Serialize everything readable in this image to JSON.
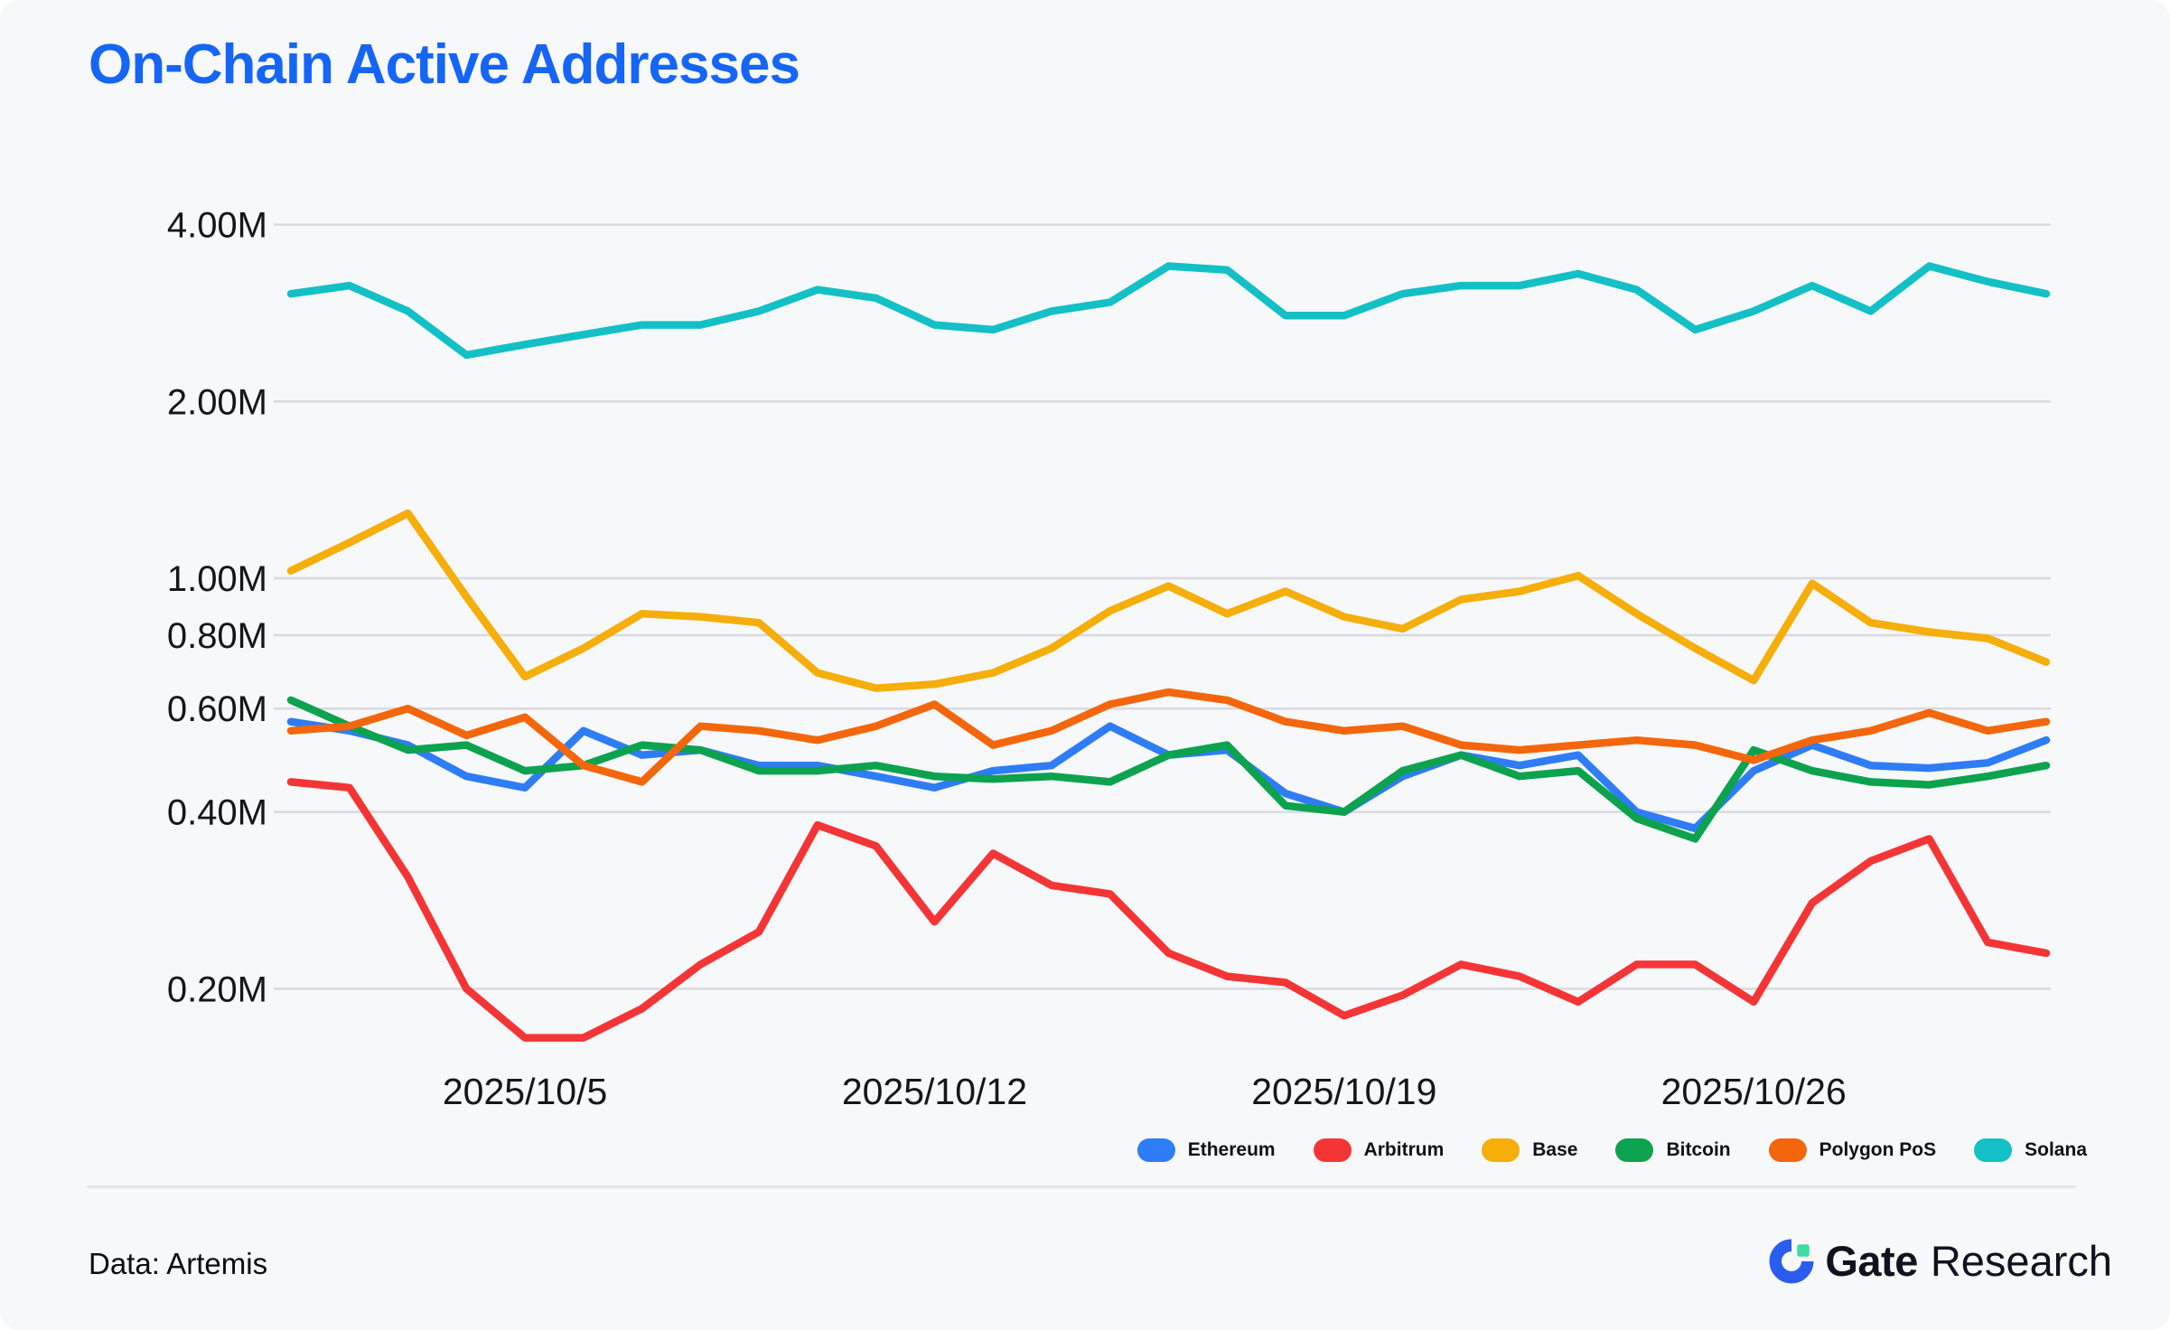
{
  "page": {
    "title": "On-Chain Active Addresses",
    "footer": {
      "source_label": "Data: Artemis",
      "brand_bold": "Gate",
      "brand_regular": "Research"
    }
  },
  "chart_data": {
    "type": "line",
    "title": "On-Chain Active Addresses",
    "unit": "millions of active addresses",
    "y_scale": "log",
    "grid": true,
    "legend_position": "bottom-right",
    "ylim": [
      0.15,
      4.6
    ],
    "y_ticks": [
      "4.00M",
      "2.00M",
      "1.00M",
      "0.80M",
      "0.60M",
      "0.40M",
      "0.20M"
    ],
    "y_tick_values": [
      4,
      2,
      1,
      0.8,
      0.6,
      0.4,
      0.2
    ],
    "x": [
      "2025/10/1",
      "2025/10/2",
      "2025/10/3",
      "2025/10/4",
      "2025/10/5",
      "2025/10/6",
      "2025/10/7",
      "2025/10/8",
      "2025/10/9",
      "2025/10/10",
      "2025/10/11",
      "2025/10/12",
      "2025/10/13",
      "2025/10/14",
      "2025/10/15",
      "2025/10/16",
      "2025/10/17",
      "2025/10/18",
      "2025/10/19",
      "2025/10/20",
      "2025/10/21",
      "2025/10/22",
      "2025/10/23",
      "2025/10/24",
      "2025/10/25",
      "2025/10/26",
      "2025/10/27",
      "2025/10/28",
      "2025/10/29",
      "2025/10/30",
      "2025/10/31"
    ],
    "x_tick_labels": [
      "2025/10/5",
      "2025/10/12",
      "2025/10/19",
      "2025/10/26"
    ],
    "x_tick_days": [
      4,
      11,
      18,
      25
    ],
    "series": [
      {
        "name": "Ethereum",
        "color": "#2e7cf6",
        "values": [
          0.57,
          0.55,
          0.52,
          0.46,
          0.44,
          0.55,
          0.5,
          0.51,
          0.48,
          0.48,
          0.46,
          0.44,
          0.47,
          0.48,
          0.56,
          0.5,
          0.51,
          0.43,
          0.4,
          0.46,
          0.5,
          0.48,
          0.5,
          0.4,
          0.375,
          0.47,
          0.52,
          0.48,
          0.475,
          0.485,
          0.53
        ]
      },
      {
        "name": "Arbitrum",
        "color": "#f43536",
        "values": [
          0.45,
          0.44,
          0.31,
          0.2,
          0.165,
          0.165,
          0.185,
          0.22,
          0.25,
          0.38,
          0.35,
          0.26,
          0.34,
          0.3,
          0.29,
          0.23,
          0.21,
          0.205,
          0.18,
          0.195,
          0.22,
          0.21,
          0.19,
          0.22,
          0.22,
          0.19,
          0.28,
          0.33,
          0.36,
          0.24,
          0.23
        ]
      },
      {
        "name": "Base",
        "color": "#f5ae0a",
        "values": [
          1.03,
          1.15,
          1.29,
          0.93,
          0.68,
          0.76,
          0.87,
          0.86,
          0.84,
          0.69,
          0.65,
          0.66,
          0.69,
          0.76,
          0.88,
          0.97,
          0.87,
          0.95,
          0.86,
          0.82,
          0.92,
          0.95,
          1.01,
          0.87,
          0.76,
          0.67,
          0.98,
          0.84,
          0.81,
          0.79,
          0.72
        ]
      },
      {
        "name": "Bitcoin",
        "color": "#0ca24e",
        "values": [
          0.62,
          0.56,
          0.51,
          0.52,
          0.47,
          0.48,
          0.52,
          0.51,
          0.47,
          0.47,
          0.48,
          0.46,
          0.455,
          0.46,
          0.45,
          0.5,
          0.52,
          0.41,
          0.4,
          0.47,
          0.5,
          0.46,
          0.47,
          0.39,
          0.36,
          0.51,
          0.47,
          0.45,
          0.445,
          0.46,
          0.48
        ]
      },
      {
        "name": "Polygon PoS",
        "color": "#f4660b",
        "values": [
          0.55,
          0.56,
          0.6,
          0.54,
          0.58,
          0.48,
          0.45,
          0.56,
          0.55,
          0.53,
          0.56,
          0.61,
          0.52,
          0.55,
          0.61,
          0.64,
          0.62,
          0.57,
          0.55,
          0.56,
          0.52,
          0.51,
          0.52,
          0.53,
          0.52,
          0.49,
          0.53,
          0.55,
          0.59,
          0.55,
          0.57
        ]
      },
      {
        "name": "Solana",
        "color": "#12c0c5",
        "values": [
          3.05,
          3.15,
          2.85,
          2.4,
          2.5,
          2.6,
          2.7,
          2.7,
          2.85,
          3.1,
          3.0,
          2.7,
          2.65,
          2.85,
          2.95,
          3.4,
          3.35,
          2.8,
          2.8,
          3.05,
          3.15,
          3.15,
          3.3,
          3.1,
          2.65,
          2.85,
          3.15,
          2.85,
          3.4,
          3.2,
          3.05
        ]
      }
    ]
  }
}
